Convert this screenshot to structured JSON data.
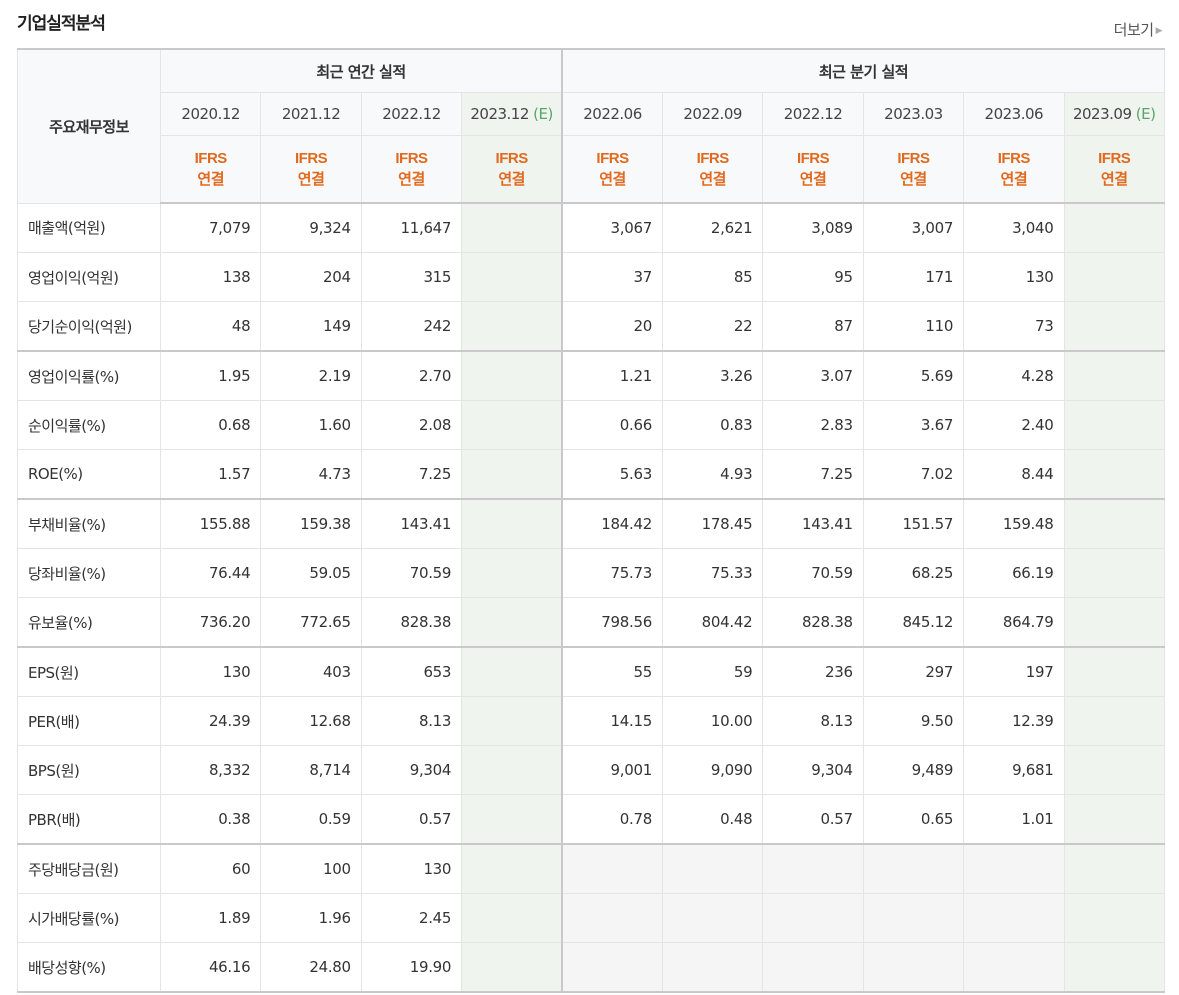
{
  "section": {
    "title": "기업실적분석",
    "more_label": "더보기"
  },
  "table": {
    "label_header": "주요재무정보",
    "groups": [
      {
        "label": "최근 연간 실적"
      },
      {
        "label": "최근 분기 실적"
      }
    ],
    "periods": [
      {
        "label": "2020.12",
        "est": ""
      },
      {
        "label": "2021.12",
        "est": ""
      },
      {
        "label": "2022.12",
        "est": ""
      },
      {
        "label": "2023.12",
        "est": "(E)"
      },
      {
        "label": "2022.06",
        "est": ""
      },
      {
        "label": "2022.09",
        "est": ""
      },
      {
        "label": "2022.12",
        "est": ""
      },
      {
        "label": "2023.03",
        "est": ""
      },
      {
        "label": "2023.06",
        "est": ""
      },
      {
        "label": "2023.09",
        "est": "(E)"
      }
    ],
    "standard": {
      "line1": "IFRS",
      "line2": "연결"
    },
    "rows": [
      {
        "label": "매출액(억원)",
        "values": [
          "7,079",
          "9,324",
          "11,647",
          "",
          "3,067",
          "2,621",
          "3,089",
          "3,007",
          "3,040",
          ""
        ]
      },
      {
        "label": "영업이익(억원)",
        "values": [
          "138",
          "204",
          "315",
          "",
          "37",
          "85",
          "95",
          "171",
          "130",
          ""
        ]
      },
      {
        "label": "당기순이익(억원)",
        "values": [
          "48",
          "149",
          "242",
          "",
          "20",
          "22",
          "87",
          "110",
          "73",
          ""
        ]
      },
      {
        "label": "영업이익률(%)",
        "values": [
          "1.95",
          "2.19",
          "2.70",
          "",
          "1.21",
          "3.26",
          "3.07",
          "5.69",
          "4.28",
          ""
        ]
      },
      {
        "label": "순이익률(%)",
        "values": [
          "0.68",
          "1.60",
          "2.08",
          "",
          "0.66",
          "0.83",
          "2.83",
          "3.67",
          "2.40",
          ""
        ]
      },
      {
        "label": "ROE(%)",
        "values": [
          "1.57",
          "4.73",
          "7.25",
          "",
          "5.63",
          "4.93",
          "7.25",
          "7.02",
          "8.44",
          ""
        ]
      },
      {
        "label": "부채비율(%)",
        "values": [
          "155.88",
          "159.38",
          "143.41",
          "",
          "184.42",
          "178.45",
          "143.41",
          "151.57",
          "159.48",
          ""
        ]
      },
      {
        "label": "당좌비율(%)",
        "values": [
          "76.44",
          "59.05",
          "70.59",
          "",
          "75.73",
          "75.33",
          "70.59",
          "68.25",
          "66.19",
          ""
        ]
      },
      {
        "label": "유보율(%)",
        "values": [
          "736.20",
          "772.65",
          "828.38",
          "",
          "798.56",
          "804.42",
          "828.38",
          "845.12",
          "864.79",
          ""
        ]
      },
      {
        "label": "EPS(원)",
        "values": [
          "130",
          "403",
          "653",
          "",
          "55",
          "59",
          "236",
          "297",
          "197",
          ""
        ]
      },
      {
        "label": "PER(배)",
        "values": [
          "24.39",
          "12.68",
          "8.13",
          "",
          "14.15",
          "10.00",
          "8.13",
          "9.50",
          "12.39",
          ""
        ]
      },
      {
        "label": "BPS(원)",
        "values": [
          "8,332",
          "8,714",
          "9,304",
          "",
          "9,001",
          "9,090",
          "9,304",
          "9,489",
          "9,681",
          ""
        ]
      },
      {
        "label": "PBR(배)",
        "values": [
          "0.38",
          "0.59",
          "0.57",
          "",
          "0.78",
          "0.48",
          "0.57",
          "0.65",
          "1.01",
          ""
        ]
      },
      {
        "label": "주당배당금(원)",
        "values": [
          "60",
          "100",
          "130",
          "",
          "",
          "",
          "",
          "",
          "",
          ""
        ]
      },
      {
        "label": "시가배당률(%)",
        "values": [
          "1.89",
          "1.96",
          "2.45",
          "",
          "",
          "",
          "",
          "",
          "",
          ""
        ]
      },
      {
        "label": "배당성향(%)",
        "values": [
          "46.16",
          "24.80",
          "19.90",
          "",
          "",
          "",
          "",
          "",
          "",
          ""
        ]
      }
    ]
  },
  "colors": {
    "standard_text": "#e06a1f",
    "estimate_text": "#5aa56a",
    "estimate_bg": "#eff4ef",
    "header_bg": "#f8f9fb"
  }
}
